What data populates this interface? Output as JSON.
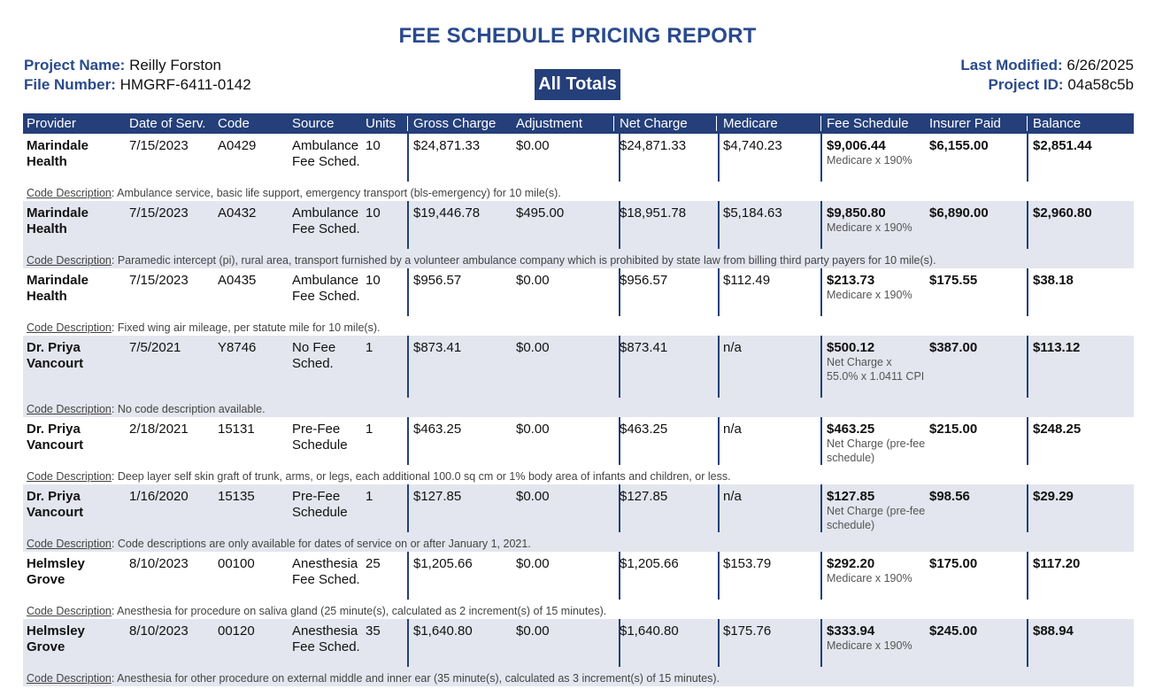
{
  "report": {
    "title": "FEE SCHEDULE PRICING REPORT",
    "project_name_label": "Project Name:",
    "project_name": "Reilly Forston",
    "file_number_label": "File Number:",
    "file_number": "HMGRF-6411-0142",
    "last_modified_label": "Last Modified:",
    "last_modified": "6/26/2025",
    "project_id_label": "Project ID:",
    "project_id": "04a58c5b",
    "totals_badge": "All Totals",
    "code_description_label": "Code Description",
    "colors": {
      "accent": "#243f7a",
      "title": "#2a4a8c",
      "row_shade": "#e3e6ee"
    }
  },
  "table": {
    "headers": {
      "provider": "Provider",
      "date": "Date of Serv.",
      "code": "Code",
      "source": "Source",
      "units": "Units",
      "gross": "Gross Charge",
      "adjustment": "Adjustment",
      "net": "Net Charge",
      "medicare": "Medicare",
      "fee_schedule": "Fee Schedule",
      "insurer_paid": "Insurer Paid",
      "balance": "Balance"
    },
    "rows": [
      {
        "provider": "Marindale Health",
        "date": "7/15/2023",
        "code": "A0429",
        "source": "Ambulance Fee Sched.",
        "units": "10",
        "gross": "$24,871.33",
        "adjustment": "$0.00",
        "net": "$24,871.33",
        "medicare": "$4,740.23",
        "fee_schedule": "$9,006.44",
        "fee_note": "Medicare x 190%",
        "insurer_paid": "$6,155.00",
        "balance": "$2,851.44",
        "description": ": Ambulance service, basic life support, emergency transport (bls-emergency) for 10 mile(s)."
      },
      {
        "provider": "Marindale Health",
        "date": "7/15/2023",
        "code": "A0432",
        "source": "Ambulance Fee Sched.",
        "units": "10",
        "gross": "$19,446.78",
        "adjustment": "$495.00",
        "net": "$18,951.78",
        "medicare": "$5,184.63",
        "fee_schedule": "$9,850.80",
        "fee_note": "Medicare x 190%",
        "insurer_paid": "$6,890.00",
        "balance": "$2,960.80",
        "description": ": Paramedic intercept (pi), rural area, transport furnished by a volunteer ambulance company which is prohibited by state law from billing third party payers for 10 mile(s)."
      },
      {
        "provider": "Marindale Health",
        "date": "7/15/2023",
        "code": "A0435",
        "source": "Ambulance Fee Sched.",
        "units": "10",
        "gross": "$956.57",
        "adjustment": "$0.00",
        "net": "$956.57",
        "medicare": "$112.49",
        "fee_schedule": "$213.73",
        "fee_note": "Medicare x 190%",
        "insurer_paid": "$175.55",
        "balance": "$38.18",
        "description": ": Fixed wing air mileage, per statute mile for 10 mile(s)."
      },
      {
        "provider": "Dr. Priya Vancourt",
        "date": "7/5/2021",
        "code": "Y8746",
        "source": "No Fee Sched.",
        "units": "1",
        "gross": "$873.41",
        "adjustment": "$0.00",
        "net": "$873.41",
        "medicare": "n/a",
        "fee_schedule": "$500.12",
        "fee_note": "Net Charge x 55.0% x 1.0411 CPI",
        "insurer_paid": "$387.00",
        "balance": "$113.12",
        "description": ": No code description available."
      },
      {
        "provider": "Dr. Priya Vancourt",
        "date": "2/18/2021",
        "code": "15131",
        "source": "Pre-Fee Schedule",
        "units": "1",
        "gross": "$463.25",
        "adjustment": "$0.00",
        "net": "$463.25",
        "medicare": "n/a",
        "fee_schedule": "$463.25",
        "fee_note": "Net Charge (pre-fee schedule)",
        "insurer_paid": "$215.00",
        "balance": "$248.25",
        "description": ": Deep layer self skin graft of trunk, arms, or legs, each additional 100.0 sq cm or 1% body area of infants and children, or less."
      },
      {
        "provider": "Dr. Priya Vancourt",
        "date": "1/16/2020",
        "code": "15135",
        "source": "Pre-Fee Schedule",
        "units": "1",
        "gross": "$127.85",
        "adjustment": "$0.00",
        "net": "$127.85",
        "medicare": "n/a",
        "fee_schedule": "$127.85",
        "fee_note": "Net Charge (pre-fee schedule)",
        "insurer_paid": "$98.56",
        "balance": "$29.29",
        "description": ": Code descriptions are only available for dates of service on or after January 1, 2021."
      },
      {
        "provider": "Helmsley Grove",
        "date": "8/10/2023",
        "code": "00100",
        "source": "Anesthesia Fee Sched.",
        "units": "25",
        "gross": "$1,205.66",
        "adjustment": "$0.00",
        "net": "$1,205.66",
        "medicare": "$153.79",
        "fee_schedule": "$292.20",
        "fee_note": "Medicare x 190%",
        "insurer_paid": "$175.00",
        "balance": "$117.20",
        "description": ": Anesthesia for procedure on saliva gland (25 minute(s), calculated as 2 increment(s) of 15 minutes)."
      },
      {
        "provider": "Helmsley Grove",
        "date": "8/10/2023",
        "code": "00120",
        "source": "Anesthesia Fee Sched.",
        "units": "35",
        "gross": "$1,640.80",
        "adjustment": "$0.00",
        "net": "$1,640.80",
        "medicare": "$175.76",
        "fee_schedule": "$333.94",
        "fee_note": "Medicare x 190%",
        "insurer_paid": "$245.00",
        "balance": "$88.94",
        "description": ": Anesthesia for other procedure on external middle and inner ear (35 minute(s), calculated as 3 increment(s) of 15 minutes)."
      }
    ]
  }
}
